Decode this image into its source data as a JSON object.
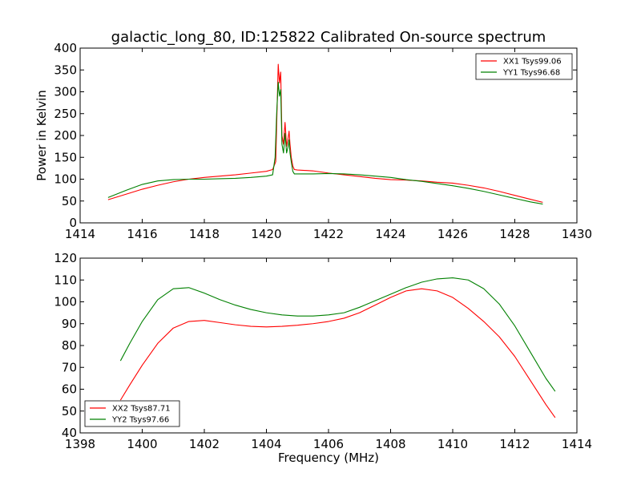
{
  "title": "galactic_long_80, ID:125822 Calibrated On-source spectrum",
  "chart_data": [
    {
      "type": "line",
      "title": "galactic_long_80, ID:125822 Calibrated On-source spectrum",
      "xlabel": "",
      "ylabel": "Power in Kelvin",
      "xlim": [
        1414,
        1430
      ],
      "ylim": [
        0,
        400
      ],
      "xticks": [
        1414,
        1416,
        1418,
        1420,
        1422,
        1424,
        1426,
        1428,
        1430
      ],
      "yticks": [
        0,
        50,
        100,
        150,
        200,
        250,
        300,
        350,
        400
      ],
      "grid": false,
      "legend_position": "top-right",
      "series": [
        {
          "name": "XX1 Tsys99.06",
          "color": "#ff0000",
          "x": [
            1414.9,
            1415.5,
            1416.0,
            1416.5,
            1417.0,
            1417.5,
            1418.0,
            1418.5,
            1419.0,
            1419.5,
            1420.0,
            1420.2,
            1420.3,
            1420.35,
            1420.38,
            1420.42,
            1420.46,
            1420.5,
            1420.55,
            1420.6,
            1420.65,
            1420.7,
            1420.73,
            1420.76,
            1420.8,
            1420.85,
            1420.9,
            1421.0,
            1421.5,
            1422.0,
            1422.5,
            1423.0,
            1423.5,
            1424.0,
            1424.5,
            1425.0,
            1425.5,
            1426.0,
            1426.5,
            1427.0,
            1427.5,
            1428.0,
            1428.5,
            1428.9
          ],
          "values": [
            53,
            66,
            77,
            86,
            94,
            100,
            104,
            107,
            110,
            114,
            118,
            122,
            140,
            280,
            363,
            320,
            345,
            200,
            180,
            230,
            175,
            195,
            210,
            180,
            150,
            130,
            122,
            121,
            119,
            114,
            110,
            106,
            102,
            99,
            98,
            96,
            93,
            91,
            86,
            80,
            72,
            63,
            54,
            47
          ]
        },
        {
          "name": "YY1 Tsys96.68",
          "color": "#008000",
          "x": [
            1414.9,
            1415.5,
            1416.0,
            1416.5,
            1417.0,
            1417.5,
            1418.0,
            1418.5,
            1419.0,
            1419.5,
            1420.0,
            1420.2,
            1420.28,
            1420.33,
            1420.38,
            1420.42,
            1420.46,
            1420.5,
            1420.55,
            1420.6,
            1420.65,
            1420.7,
            1420.73,
            1420.76,
            1420.8,
            1420.85,
            1420.9,
            1421.0,
            1421.5,
            1422.0,
            1422.5,
            1423.0,
            1423.5,
            1424.0,
            1424.5,
            1425.0,
            1425.5,
            1426.0,
            1426.5,
            1427.0,
            1427.5,
            1428.0,
            1428.5,
            1428.9
          ],
          "values": [
            58,
            75,
            88,
            96,
            99,
            100,
            100,
            101,
            102,
            104,
            107,
            110,
            150,
            250,
            322,
            290,
            305,
            180,
            160,
            205,
            160,
            175,
            190,
            160,
            140,
            118,
            112,
            112,
            112,
            113,
            112,
            110,
            107,
            104,
            99,
            95,
            90,
            85,
            79,
            72,
            64,
            56,
            48,
            43
          ]
        }
      ]
    },
    {
      "type": "line",
      "title": "",
      "xlabel": "Frequency (MHz)",
      "ylabel": "",
      "xlim": [
        1398,
        1414
      ],
      "ylim": [
        40,
        120
      ],
      "xticks": [
        1398,
        1400,
        1402,
        1404,
        1406,
        1408,
        1410,
        1412,
        1414
      ],
      "yticks": [
        40,
        50,
        60,
        70,
        80,
        90,
        100,
        110,
        120
      ],
      "grid": false,
      "legend_position": "bottom-left",
      "series": [
        {
          "name": "XX2 Tsys87.71",
          "color": "#ff0000",
          "x": [
            1399.3,
            1399.6,
            1400.0,
            1400.5,
            1401.0,
            1401.5,
            1402.0,
            1402.5,
            1403.0,
            1403.5,
            1404.0,
            1404.5,
            1405.0,
            1405.5,
            1406.0,
            1406.5,
            1407.0,
            1407.5,
            1408.0,
            1408.5,
            1409.0,
            1409.5,
            1410.0,
            1410.5,
            1411.0,
            1411.5,
            1412.0,
            1412.5,
            1413.0,
            1413.3
          ],
          "values": [
            55,
            62,
            71,
            81,
            88,
            91,
            91.5,
            90.5,
            89.5,
            88.8,
            88.5,
            88.8,
            89.3,
            90,
            91,
            92.5,
            95,
            98.5,
            102,
            105,
            106,
            105,
            102,
            97,
            91,
            84,
            75,
            64,
            53,
            47
          ]
        },
        {
          "name": "YY2 Tsys97.66",
          "color": "#008000",
          "x": [
            1399.3,
            1399.6,
            1400.0,
            1400.5,
            1401.0,
            1401.5,
            1402.0,
            1402.5,
            1403.0,
            1403.5,
            1404.0,
            1404.5,
            1405.0,
            1405.5,
            1406.0,
            1406.5,
            1407.0,
            1407.5,
            1408.0,
            1408.5,
            1409.0,
            1409.5,
            1410.0,
            1410.5,
            1411.0,
            1411.5,
            1412.0,
            1412.5,
            1413.0,
            1413.3
          ],
          "values": [
            73,
            81,
            91,
            101,
            106,
            106.5,
            104,
            101,
            98.5,
            96.5,
            95,
            94,
            93.5,
            93.5,
            94,
            95,
            97.5,
            100.5,
            103.5,
            106.5,
            109,
            110.5,
            111,
            110,
            106,
            99,
            89,
            77,
            65,
            59
          ]
        }
      ]
    }
  ]
}
